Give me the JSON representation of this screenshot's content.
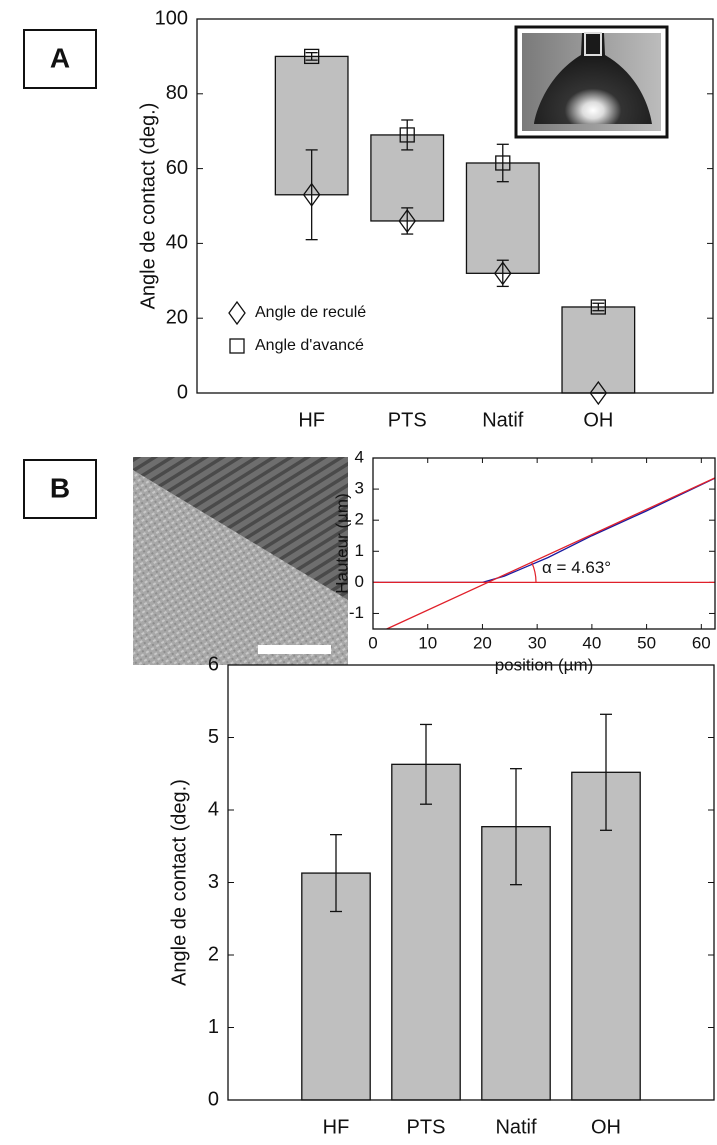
{
  "chart_data": [
    {
      "type": "floating_bar",
      "ylabel": "Angle de contact (deg.)",
      "categories": [
        "HF",
        "PTS",
        "Natif",
        "OH"
      ],
      "series": [
        {
          "name": "Angle de reculé",
          "marker": "diamond",
          "values": [
            53,
            46,
            32,
            0
          ],
          "errors": [
            12,
            3.5,
            3.5,
            0
          ]
        },
        {
          "name": "Angle d'avancé",
          "marker": "square",
          "values": [
            90,
            69,
            61.5,
            23
          ],
          "errors": [
            1,
            4,
            5,
            1
          ]
        }
      ],
      "color": "#bfbfbf",
      "ylim": [
        0,
        100
      ],
      "yticks": [
        0,
        20,
        40,
        60,
        80,
        100
      ],
      "legend": "lower left",
      "panel": "A"
    },
    {
      "type": "line",
      "xlabel": "position (µm)",
      "ylabel": "Hauteur (µm)",
      "annotation": "α = 4.63°",
      "series": [
        {
          "color": "#1a1aa0",
          "x": [
            0,
            20,
            24,
            28,
            32,
            40,
            50,
            62.5
          ],
          "values": [
            0,
            0,
            0.2,
            0.5,
            0.8,
            1.5,
            2.3,
            3.35
          ]
        },
        {
          "color": "#e0202a",
          "x": [
            2.5,
            62.5
          ],
          "values": [
            -1.5,
            3.36
          ]
        },
        {
          "color": "#e0202a",
          "x": [
            0,
            62.5
          ],
          "values": [
            0,
            0
          ]
        }
      ],
      "xlim": [
        0,
        62.5
      ],
      "xticks": [
        0,
        10,
        20,
        30,
        40,
        50,
        60
      ],
      "ylim": [
        -1.5,
        4
      ],
      "yticks": [
        -1,
        0,
        1,
        2,
        3,
        4
      ],
      "panel": "B"
    },
    {
      "type": "bar",
      "ylabel": "Angle de contact (deg.)",
      "categories": [
        "HF",
        "PTS",
        "Natif",
        "OH"
      ],
      "values": [
        3.13,
        4.63,
        3.77,
        4.52
      ],
      "errors": [
        0.53,
        0.55,
        0.8,
        0.8
      ],
      "color": "#bfbfbf",
      "ylim": [
        0,
        6
      ],
      "yticks": [
        0,
        1,
        2,
        3,
        4,
        5,
        6
      ]
    }
  ]
}
